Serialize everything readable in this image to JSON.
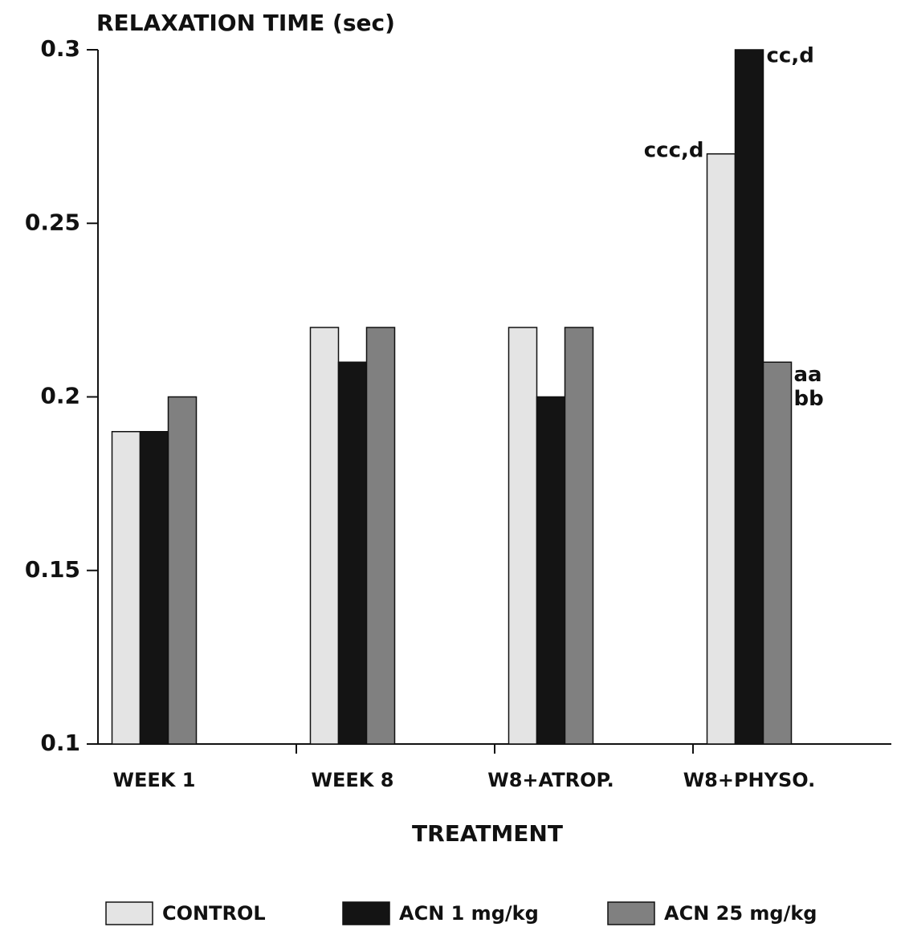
{
  "chart_data": {
    "type": "bar",
    "title": "RELAXATION TIME (sec)",
    "x_label": "TREATMENT",
    "categories": [
      "WEEK 1",
      "WEEK 8",
      "W8+ATROP.",
      "W8+PHYSO."
    ],
    "series": [
      {
        "name": "CONTROL",
        "color": "#e4e4e4",
        "values": [
          0.19,
          0.22,
          0.22,
          0.27
        ]
      },
      {
        "name": "ACN 1 mg/kg",
        "color": "#141414",
        "values": [
          0.19,
          0.21,
          0.2,
          0.3
        ]
      },
      {
        "name": "ACN 25 mg/kg",
        "color": "#808080",
        "values": [
          0.2,
          0.22,
          0.22,
          0.21
        ]
      }
    ],
    "annotations": [
      {
        "series": 0,
        "category": 3,
        "text": "ccc,d"
      },
      {
        "series": 1,
        "category": 3,
        "text": "cc,d"
      },
      {
        "series": 2,
        "category": 3,
        "text": "aa"
      },
      {
        "series": 2,
        "category": 3,
        "text": "bb"
      }
    ],
    "ylim": [
      0.1,
      0.3
    ],
    "yticks": [
      0.1,
      0.15,
      0.2,
      0.25,
      0.3
    ],
    "grid": false,
    "legend": "bottom"
  }
}
